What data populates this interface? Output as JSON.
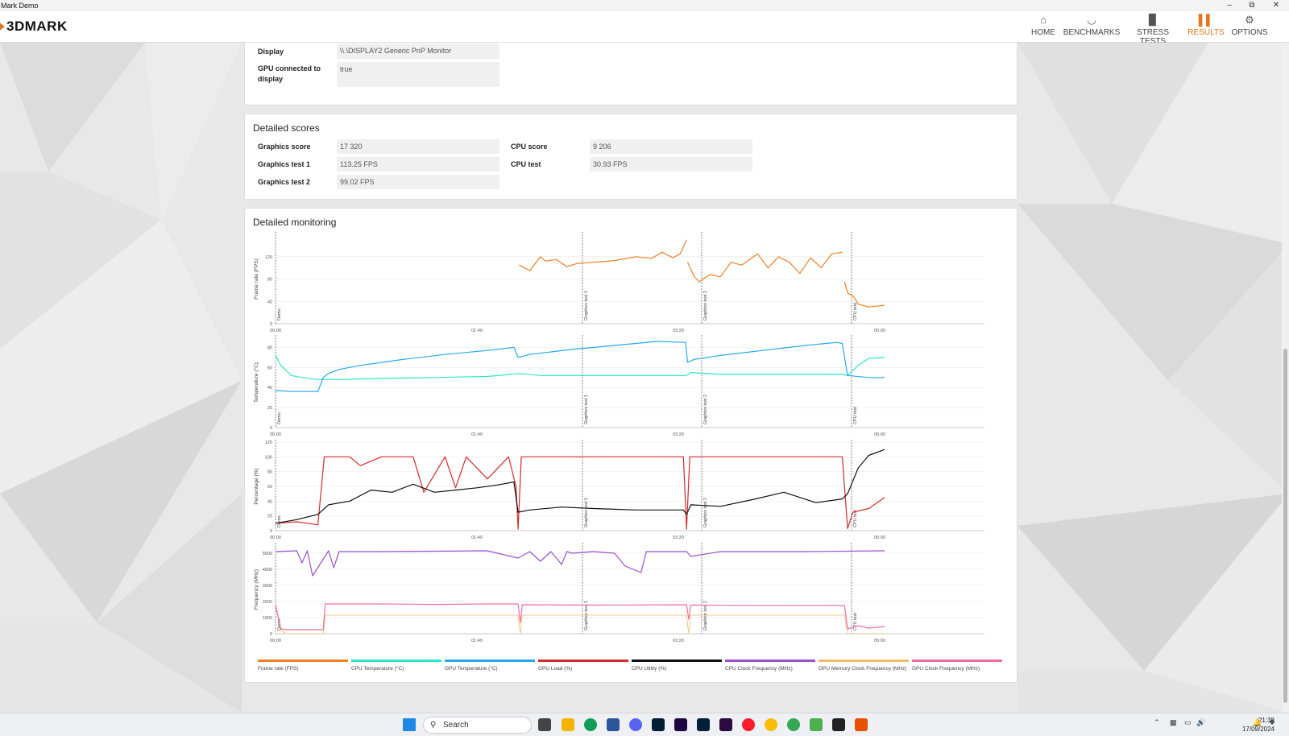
{
  "window": {
    "title": "Mark Demo"
  },
  "app": {
    "logo_text": "3DMARK"
  },
  "nav": {
    "items": [
      {
        "label": "HOME",
        "icon": "home-icon"
      },
      {
        "label": "BENCHMARKS",
        "icon": "gauge-icon"
      },
      {
        "label": "STRESS TESTS",
        "icon": "bar-chart-icon"
      },
      {
        "label": "RESULTS",
        "icon": "results-icon",
        "active": true
      },
      {
        "label": "OPTIONS",
        "icon": "gear-icon"
      }
    ],
    "accent_color": "#e8741f"
  },
  "system_info": {
    "display_label": "Display",
    "display_value": "\\\\.\\DISPLAY2 Generic PnP Monitor",
    "gpu_connected_label": "GPU connected to display",
    "gpu_connected_value": "true"
  },
  "detailed_scores": {
    "title": "Detailed scores",
    "graphics_score_label": "Graphics score",
    "graphics_score_value": "17 320",
    "graphics_test1_label": "Graphics test 1",
    "graphics_test1_value": "113.25 FPS",
    "graphics_test2_label": "Graphics test 2",
    "graphics_test2_value": "99.02 FPS",
    "cpu_score_label": "CPU score",
    "cpu_score_value": "9 206",
    "cpu_test_label": "CPU test",
    "cpu_test_value": "30.93 FPS"
  },
  "monitoring": {
    "title": "Detailed monitoring",
    "x_ticks": [
      "00:00",
      "01:40",
      "03:20",
      "05:00"
    ],
    "markers": [
      "Demo",
      "Graphics test 1",
      "Graphics test 2",
      "CPU test"
    ],
    "legend": [
      {
        "label": "Frame rate (FPS)",
        "color": "#f07f24"
      },
      {
        "label": "CPU Temperature (°C)",
        "color": "#2ee6c6"
      },
      {
        "label": "GPU Temperature (°C)",
        "color": "#26a9ee"
      },
      {
        "label": "GPU Load (%)",
        "color": "#d42a2a"
      },
      {
        "label": "CPU Utility (%)",
        "color": "#111111"
      },
      {
        "label": "CPU Clock Frequency (MHz)",
        "color": "#9b4fd1"
      },
      {
        "label": "GPU Memory Clock Frequency (MHz)",
        "color": "#f5b96a"
      },
      {
        "label": "GPU Clock Frequency (MHz)",
        "color": "#ee6fa0"
      }
    ]
  },
  "chart_data": [
    {
      "type": "line",
      "ylabel": "Frame rate (FPS)",
      "ylim": [
        0,
        160
      ],
      "yticks": [
        0,
        40,
        80,
        120
      ],
      "series": [
        {
          "name": "Frame rate (FPS)",
          "segments": [
            {
              "x": [
                230,
                240,
                250,
                255,
                265,
                275,
                285,
                300,
                320,
                340,
                355,
                365,
                375,
                382,
                388
              ],
              "y": [
                105,
                95,
                120,
                112,
                115,
                102,
                108,
                110,
                113,
                120,
                117,
                128,
                118,
                125,
                150
              ]
            },
            {
              "x": [
                389,
                395,
                400,
                410,
                420,
                430,
                440,
                455,
                465,
                475,
                485,
                495,
                505,
                515,
                525,
                535
              ],
              "y": [
                110,
                85,
                75,
                88,
                84,
                110,
                105,
                125,
                100,
                120,
                110,
                90,
                118,
                100,
                125,
                128
              ]
            },
            {
              "x": [
                537,
                540,
                545,
                550,
                560,
                570,
                575
              ],
              "y": [
                75,
                55,
                50,
                35,
                30,
                32,
                33
              ]
            }
          ]
        }
      ]
    },
    {
      "type": "line",
      "ylabel": "Temperature (°C)",
      "ylim": [
        0,
        90
      ],
      "yticks": [
        0,
        20,
        40,
        60,
        80
      ],
      "series": [
        {
          "name": "CPU Temperature (°C)",
          "x": [
            0,
            5,
            15,
            25,
            40,
            60,
            100,
            150,
            200,
            230,
            250,
            300,
            388,
            392,
            420,
            460,
            500,
            535,
            540,
            550,
            560,
            575
          ],
          "y": [
            72,
            62,
            52,
            50,
            48,
            48,
            49,
            50,
            51,
            54,
            52,
            52,
            52,
            55,
            53,
            53,
            53,
            53,
            52,
            62,
            69,
            70
          ]
        },
        {
          "name": "GPU Temperature (°C)",
          "x": [
            0,
            15,
            40,
            45,
            50,
            60,
            80,
            120,
            160,
            200,
            225,
            229,
            240,
            280,
            320,
            360,
            387,
            389,
            395,
            420,
            460,
            500,
            530,
            535,
            540,
            560,
            575
          ],
          "y": [
            37,
            36,
            36,
            50,
            54,
            58,
            62,
            68,
            73,
            77,
            80,
            70,
            73,
            78,
            82,
            86,
            85,
            65,
            68,
            72,
            77,
            82,
            85,
            84,
            52,
            50,
            50
          ]
        }
      ]
    },
    {
      "type": "line",
      "ylabel": "Percentage (%)",
      "ylim": [
        0,
        120
      ],
      "yticks": [
        0,
        20,
        40,
        60,
        80,
        100,
        120
      ],
      "series": [
        {
          "name": "GPU Load (%)",
          "x": [
            0,
            20,
            40,
            44,
            46,
            70,
            80,
            100,
            130,
            140,
            160,
            170,
            180,
            200,
            220,
            227,
            229,
            232,
            245,
            300,
            385,
            388,
            391,
            400,
            470,
            535,
            540,
            545,
            560,
            575
          ],
          "y": [
            10,
            12,
            8,
            70,
            100,
            100,
            88,
            100,
            100,
            52,
            100,
            58,
            100,
            70,
            100,
            60,
            2,
            100,
            100,
            100,
            100,
            2,
            100,
            100,
            100,
            100,
            3,
            25,
            30,
            45
          ]
        },
        {
          "name": "CPU Utility (%)",
          "x": [
            0,
            20,
            40,
            50,
            70,
            90,
            110,
            130,
            150,
            170,
            190,
            210,
            225,
            229,
            240,
            270,
            300,
            340,
            385,
            388,
            392,
            420,
            450,
            480,
            510,
            535,
            540,
            550,
            560,
            575
          ],
          "y": [
            10,
            15,
            22,
            35,
            40,
            55,
            52,
            63,
            52,
            55,
            58,
            62,
            66,
            25,
            28,
            32,
            30,
            28,
            28,
            22,
            35,
            33,
            42,
            52,
            38,
            43,
            50,
            85,
            102,
            110
          ]
        }
      ]
    },
    {
      "type": "line",
      "ylabel": "Frequency (MHz)",
      "ylim": [
        0,
        5500
      ],
      "yticks": [
        0,
        1000,
        2000,
        3000,
        4000,
        5000
      ],
      "series": [
        {
          "name": "CPU Clock Frequency (MHz)",
          "x": [
            0,
            20,
            25,
            30,
            35,
            50,
            55,
            60,
            100,
            200,
            229,
            240,
            250,
            260,
            270,
            275,
            280,
            300,
            320,
            330,
            345,
            350,
            360,
            388,
            392,
            420,
            500,
            575
          ],
          "y": [
            5100,
            5150,
            4400,
            5150,
            3600,
            5150,
            4100,
            5100,
            5100,
            5150,
            4700,
            5100,
            4500,
            5100,
            4300,
            5100,
            5000,
            5100,
            5000,
            4200,
            3800,
            5100,
            5100,
            5100,
            4800,
            5100,
            5100,
            5150
          ]
        },
        {
          "name": "GPU Memory Clock Frequency (MHz)",
          "x": [
            0,
            5,
            10,
            45,
            47,
            229,
            231,
            233,
            388,
            390,
            392,
            537,
            540,
            575
          ],
          "y": [
            1700,
            200,
            0,
            0,
            1150,
            1150,
            0,
            1150,
            1150,
            0,
            1150,
            1150,
            0,
            0
          ]
        },
        {
          "name": "GPU Clock Frequency (MHz)",
          "x": [
            0,
            5,
            10,
            45,
            47,
            100,
            150,
            200,
            229,
            231,
            233,
            300,
            388,
            390,
            392,
            450,
            537,
            540,
            550,
            560,
            575
          ],
          "y": [
            1800,
            300,
            250,
            250,
            1850,
            1850,
            1820,
            1850,
            1850,
            700,
            1800,
            1780,
            1800,
            900,
            1780,
            1760,
            1750,
            300,
            500,
            350,
            450
          ]
        }
      ]
    }
  ]
}
